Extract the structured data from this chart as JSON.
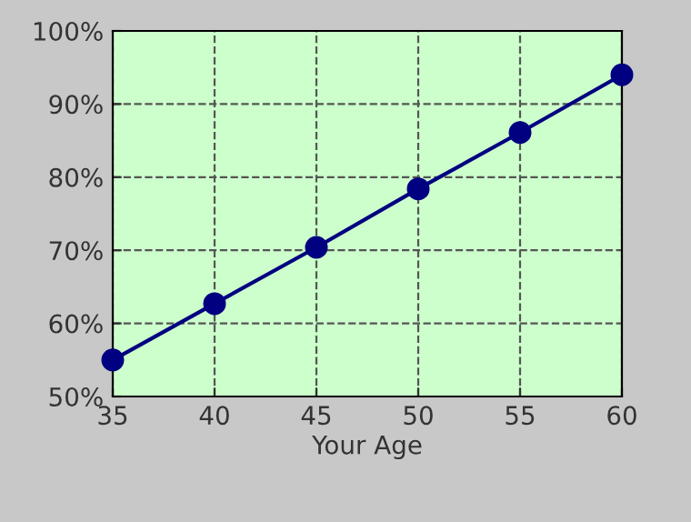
{
  "chart_data": {
    "type": "line",
    "xlabel": "Your Age",
    "x": [
      35,
      40,
      45,
      50,
      55,
      60
    ],
    "series": [
      {
        "color": "#000080",
        "values": [
          55.0,
          62.7,
          70.4,
          78.4,
          86.1,
          94.0
        ]
      }
    ],
    "xlim": [
      35,
      60
    ],
    "xticks": [
      35,
      40,
      45,
      50,
      55,
      60
    ],
    "ylim": [
      50,
      100
    ],
    "yticks": [
      {
        "value": 50,
        "label": "50%"
      },
      {
        "value": 60,
        "label": "60%"
      },
      {
        "value": 70,
        "label": "70%"
      },
      {
        "value": 80,
        "label": "80%"
      },
      {
        "value": 90,
        "label": "90%"
      },
      {
        "value": 100,
        "label": "100%"
      }
    ],
    "grid": true,
    "marker": "circle",
    "line_style": "solid",
    "legend": false
  }
}
